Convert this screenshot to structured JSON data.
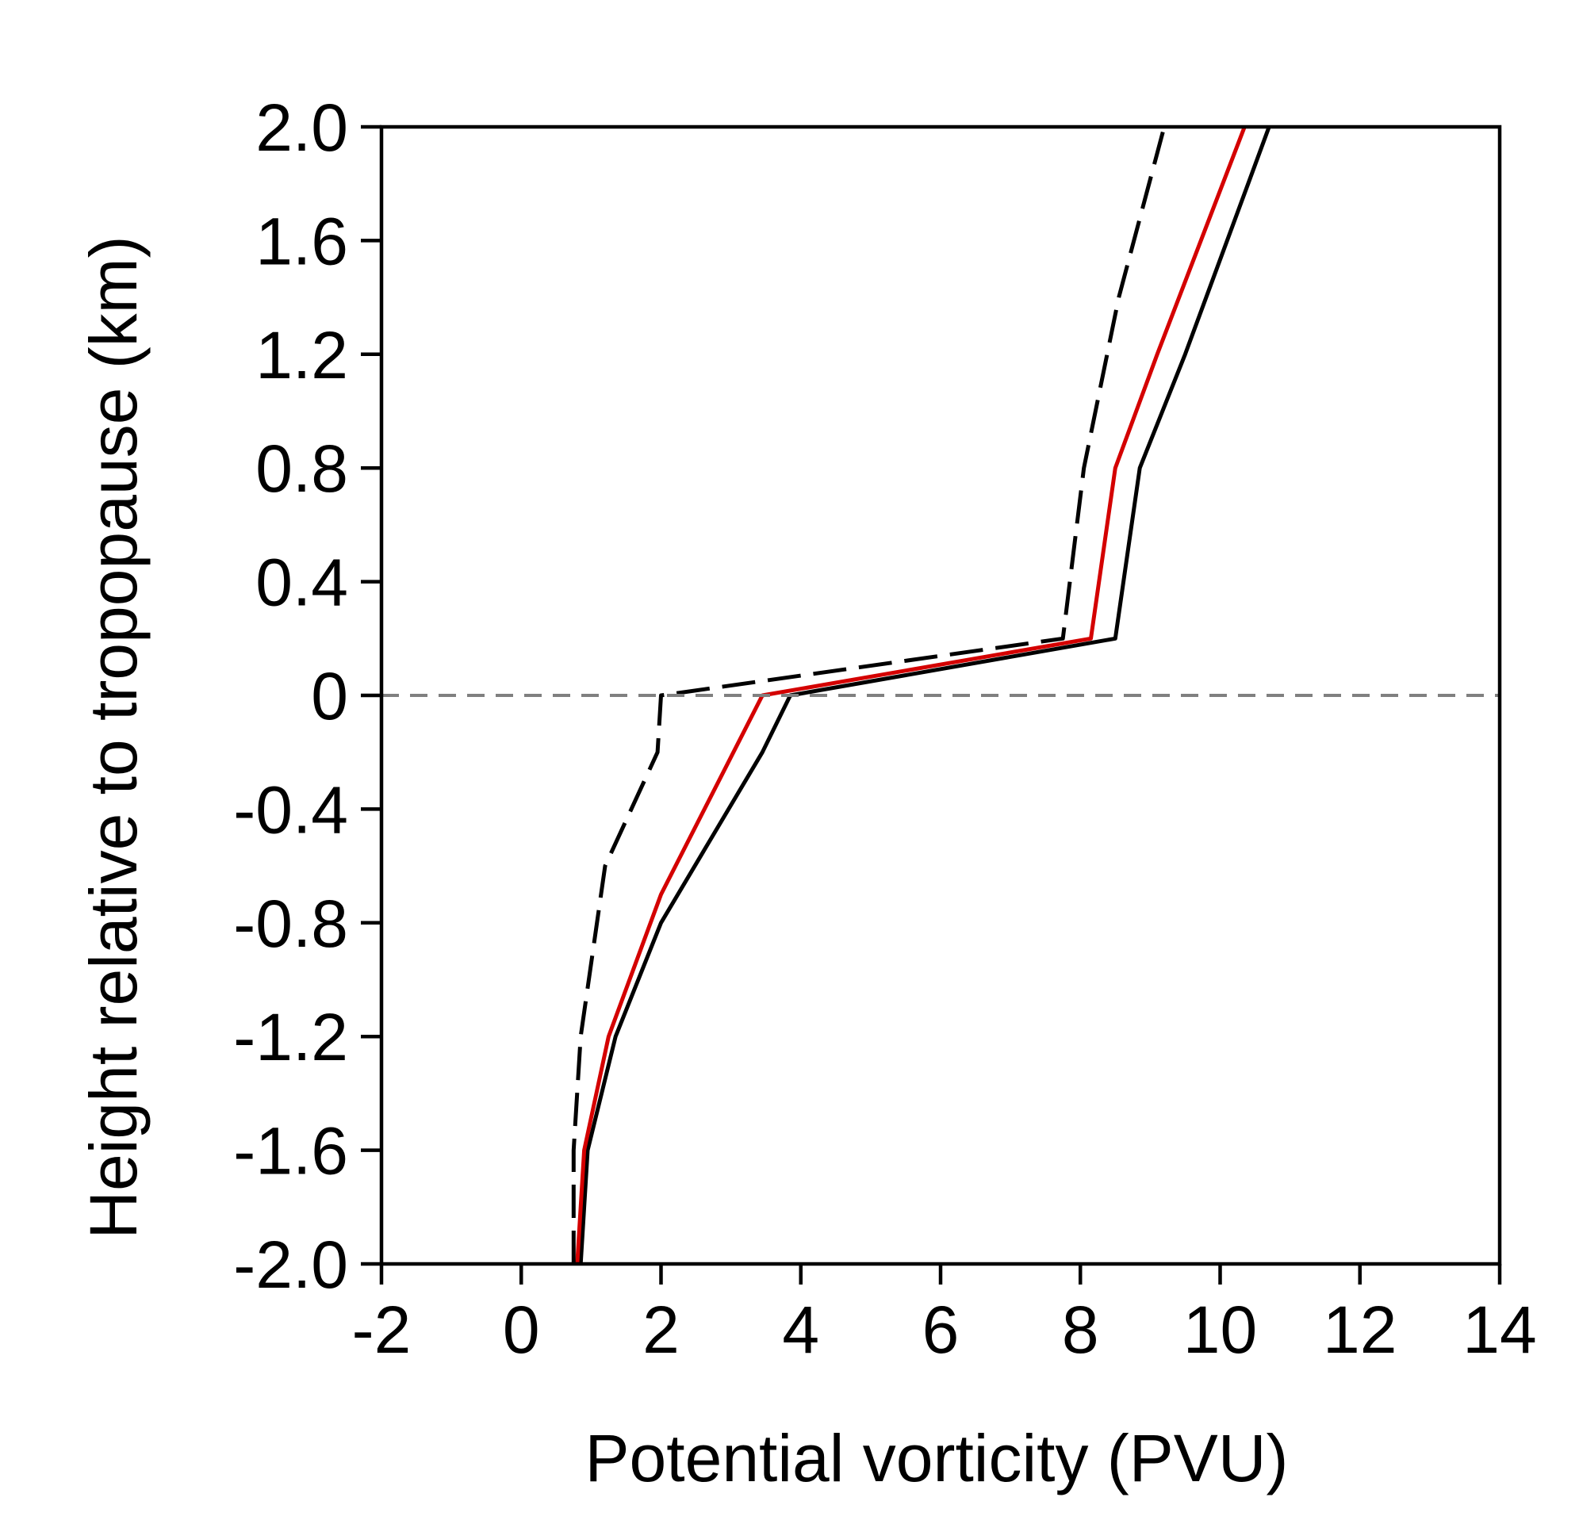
{
  "chart_data": {
    "type": "line",
    "title": "",
    "xlabel": "Potential vorticity (PVU)",
    "ylabel": "Height relative to tropopause (km)",
    "xlim": [
      -2,
      14
    ],
    "ylim": [
      -2.0,
      2.0
    ],
    "xticks": [
      -2,
      0,
      2,
      4,
      6,
      8,
      10,
      12,
      14
    ],
    "xtick_labels": [
      "-2",
      "0",
      "2",
      "4",
      "6",
      "8",
      "10",
      "12",
      "14"
    ],
    "yticks": [
      2.0,
      1.6,
      1.2,
      0.8,
      0.4,
      0,
      -0.4,
      -0.8,
      -1.2,
      -1.6,
      -2.0
    ],
    "ytick_labels": [
      "2.0",
      "1.6",
      "1.2",
      "0.8",
      "0.4",
      "0",
      "-0.4",
      "-0.8",
      "-1.2",
      "-1.6",
      "-2.0"
    ],
    "grid": false,
    "legend": "none",
    "reference_line": {
      "y": 0,
      "style": "dashed",
      "color": "#808080"
    },
    "series": [
      {
        "name": "solid-black",
        "color": "#000000",
        "style": "solid",
        "points": [
          [
            0.85,
            -2.0
          ],
          [
            0.95,
            -1.6
          ],
          [
            1.35,
            -1.2
          ],
          [
            2.0,
            -0.8
          ],
          [
            3.45,
            -0.2
          ],
          [
            3.85,
            0.0
          ],
          [
            8.5,
            0.2
          ],
          [
            8.85,
            0.8
          ],
          [
            9.5,
            1.2
          ],
          [
            10.4,
            1.8
          ],
          [
            10.7,
            2.0
          ]
        ]
      },
      {
        "name": "red",
        "color": "#d40000",
        "style": "solid",
        "points": [
          [
            0.8,
            -2.0
          ],
          [
            0.9,
            -1.6
          ],
          [
            1.25,
            -1.2
          ],
          [
            2.0,
            -0.7
          ],
          [
            3.45,
            0.0
          ],
          [
            8.15,
            0.2
          ],
          [
            8.5,
            0.8
          ],
          [
            9.1,
            1.2
          ],
          [
            10.35,
            2.0
          ]
        ]
      },
      {
        "name": "dashed-black",
        "color": "#000000",
        "style": "dashed",
        "points": [
          [
            0.75,
            -2.0
          ],
          [
            0.75,
            -1.6
          ],
          [
            0.85,
            -1.2
          ],
          [
            1.2,
            -0.6
          ],
          [
            1.95,
            -0.2
          ],
          [
            2.0,
            0.0
          ],
          [
            7.75,
            0.2
          ],
          [
            8.05,
            0.8
          ],
          [
            8.55,
            1.4
          ],
          [
            9.2,
            2.0
          ]
        ]
      }
    ]
  }
}
